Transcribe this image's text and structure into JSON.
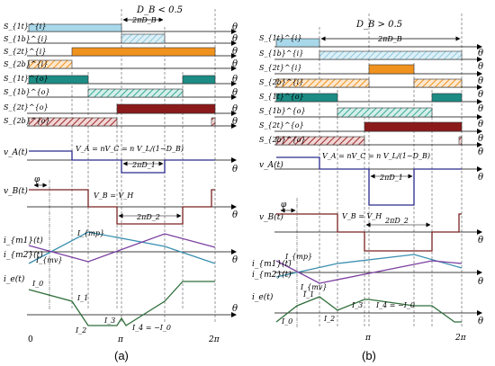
{
  "panel_a": {
    "caption": "(a)",
    "condition": "D_B < 0.5",
    "switch_labels": [
      "S_{1t}^{i}",
      "S_{1b}^{i}",
      "S_{2t}^{i}",
      "S_{2b}^{i}",
      "S_{1t}^{o}",
      "S_{1b}^{o}",
      "S_{2t}^{o}",
      "S_{2b}^{o}"
    ],
    "phase_label": "2πD_B",
    "vA_label": "v_A(t)",
    "vA_eq": "V_A = nV_C = n V_L/(1−D_B)",
    "vB_label": "v_B(t)",
    "vB_eq": "V_B = V_H",
    "phi": "φ",
    "d1_label": "2πD_1",
    "d2_label": "2πD_2",
    "im1_label": "i_{m1}(t)",
    "im2_label": "i_{m2}(t)",
    "imp": "I_{mp}",
    "imv": "I_{mv}",
    "ie_label": "i_e(t)",
    "I0": "I_0",
    "I1": "I_1",
    "I2": "I_2",
    "I3": "I_3",
    "I4": "I_4 = −I_0",
    "theta": "θ",
    "tick_0": "0",
    "tick_pi": "π",
    "tick_2pi": "2π"
  },
  "panel_b": {
    "caption": "(b)",
    "condition": "D_B > 0.5",
    "switch_labels": [
      "S_{1t}^{i}",
      "S_{1b}^{i}",
      "S_{2t}^{i}",
      "S_{2b}^{i}",
      "S_{1t}^{o}",
      "S_{1b}^{o}",
      "S_{2t}^{o}",
      "S_{2b}^{o}"
    ],
    "phase_label": "2πD_B",
    "vA_label": "v_A(t)",
    "vA_eq": "V_A = nV_C = n V_L/(1−D_B)",
    "vB_label": "v_B(t)",
    "vB_eq": "V_B = V_H",
    "phi": "φ",
    "d1_label": "2πD_1",
    "d2_label": "2πD_2",
    "im1_label": "i_{m1}(t)",
    "im2_label": "i_{m2}(t)",
    "imp": "I_{mp}",
    "imv": "I_{mv}",
    "ie_label": "i_e(t)",
    "I0": "I_0",
    "I1": "I_1",
    "I2": "I_2",
    "I3": "I_3",
    "I4": "I_4 = −I_0",
    "theta": "θ",
    "tick_pi": "π",
    "tick_2pi": "2π"
  },
  "colors": {
    "s1t_i": "#a8d8ea",
    "s1b_i": "#8ec9dd",
    "s2t_i": "#f0921e",
    "s2b_i": "#f5a95b",
    "s1t_o": "#1c8c84",
    "s1b_o": "#3aa89a",
    "s2t_o": "#8b1a1a",
    "s2b_o": "#9b2a2a",
    "vA": "#2a2a8c",
    "vB": "#7a2222",
    "im1": "#3a8fb0",
    "im2": "#7a3fa0",
    "ie": "#2f6e3a"
  }
}
